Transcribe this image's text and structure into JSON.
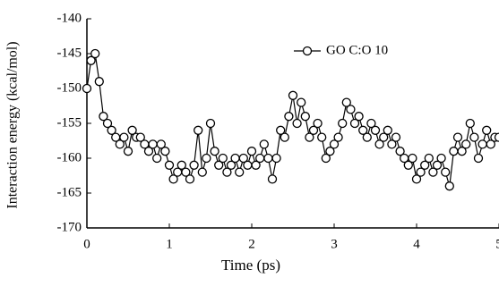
{
  "chart_data": {
    "type": "line",
    "xlabel": "Time (ps)",
    "ylabel": "Interaction energy (kcal/mol)",
    "x": [
      0,
      0.05,
      0.1,
      0.15,
      0.2,
      0.25,
      0.3,
      0.35,
      0.4,
      0.45,
      0.5,
      0.55,
      0.6,
      0.65,
      0.7,
      0.75,
      0.8,
      0.85,
      0.9,
      0.95,
      1,
      1.05,
      1.1,
      1.15,
      1.2,
      1.25,
      1.3,
      1.35,
      1.4,
      1.45,
      1.5,
      1.55,
      1.6,
      1.65,
      1.7,
      1.75,
      1.8,
      1.85,
      1.9,
      1.95,
      2,
      2.05,
      2.1,
      2.15,
      2.2,
      2.25,
      2.3,
      2.35,
      2.4,
      2.45,
      2.5,
      2.55,
      2.6,
      2.65,
      2.7,
      2.75,
      2.8,
      2.85,
      2.9,
      2.95,
      3,
      3.05,
      3.1,
      3.15,
      3.2,
      3.25,
      3.3,
      3.35,
      3.4,
      3.45,
      3.5,
      3.55,
      3.6,
      3.65,
      3.7,
      3.75,
      3.8,
      3.85,
      3.9,
      3.95,
      4,
      4.05,
      4.1,
      4.15,
      4.2,
      4.25,
      4.3,
      4.35,
      4.4,
      4.45,
      4.5,
      4.55,
      4.6,
      4.65,
      4.7,
      4.75,
      4.8,
      4.85,
      4.9,
      4.95,
      5
    ],
    "series": [
      {
        "name": "GO C:O 10",
        "color": "#000000",
        "values": [
          -150,
          -146,
          -145,
          -149,
          -154,
          -155,
          -156,
          -157,
          -158,
          -157,
          -159,
          -156,
          -157,
          -157,
          -158,
          -159,
          -158,
          -160,
          -158,
          -159,
          -161,
          -163,
          -162,
          -161,
          -162,
          -163,
          -161,
          -156,
          -162,
          -160,
          -155,
          -159,
          -161,
          -160,
          -162,
          -161,
          -160,
          -162,
          -160,
          -161,
          -159,
          -161,
          -160,
          -158,
          -160,
          -163,
          -160,
          -156,
          -157,
          -154,
          -151,
          -155,
          -152,
          -154,
          -157,
          -156,
          -155,
          -157,
          -160,
          -159,
          -158,
          -157,
          -155,
          -152,
          -153,
          -155,
          -154,
          -156,
          -157,
          -155,
          -156,
          -158,
          -157,
          -156,
          -158,
          -157,
          -159,
          -160,
          -161,
          -160,
          -163,
          -162,
          -161,
          -160,
          -162,
          -161,
          -160,
          -162,
          -164,
          -159,
          -157,
          -159,
          -158,
          -155,
          -157,
          -160,
          -158,
          -156,
          -158,
          -157,
          -157
        ]
      }
    ],
    "xlim": [
      0,
      5
    ],
    "xticks": [
      0,
      1,
      2,
      3,
      4,
      5
    ],
    "ylim": [
      -170,
      -140
    ],
    "yticks": [
      -170,
      -165,
      -160,
      -155,
      -150,
      -145,
      -140
    ]
  }
}
